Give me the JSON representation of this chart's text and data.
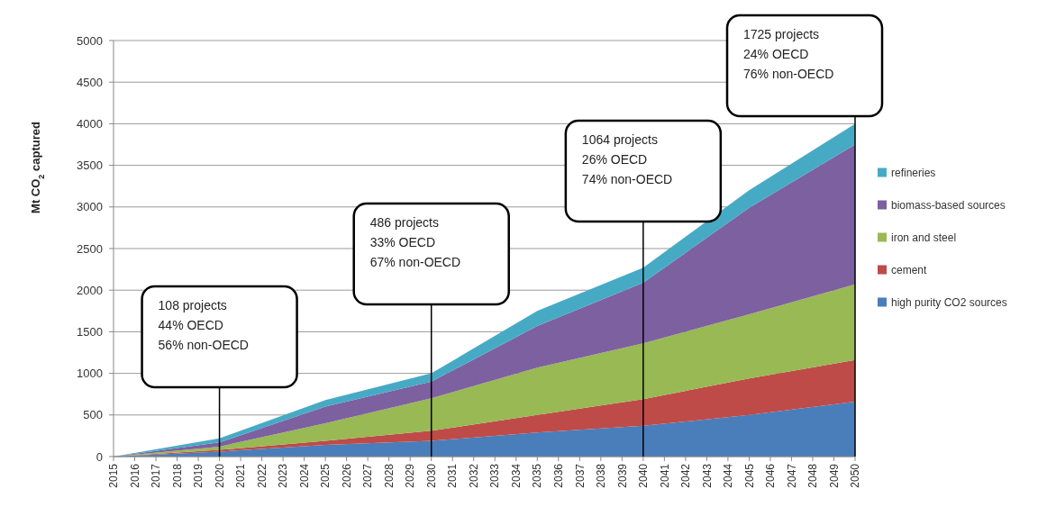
{
  "chart_data": {
    "type": "area",
    "stacked": true,
    "ylabel": "Mt CO$_{2}$ captured",
    "x": [
      2015,
      2020,
      2025,
      2030,
      2035,
      2040,
      2045,
      2050
    ],
    "xlim": [
      2015,
      2050
    ],
    "xticks": [
      2015,
      2016,
      2017,
      2018,
      2019,
      2020,
      2021,
      2022,
      2023,
      2024,
      2025,
      2026,
      2027,
      2028,
      2029,
      2030,
      2031,
      2032,
      2033,
      2034,
      2035,
      2036,
      2037,
      2038,
      2039,
      2040,
      2041,
      2042,
      2043,
      2044,
      2045,
      2046,
      2047,
      2048,
      2049,
      2050
    ],
    "ylim": [
      0,
      5000
    ],
    "yticks": [
      0,
      500,
      1000,
      1500,
      2000,
      2500,
      3000,
      3500,
      4000,
      4500,
      5000
    ],
    "grid": "y",
    "legend": "right",
    "series": [
      {
        "name": "high purity CO2 sources",
        "color": "#4a7ebb",
        "values": [
          0,
          60,
          140,
          190,
          290,
          370,
          500,
          660
        ]
      },
      {
        "name": "cement",
        "color": "#be4b48",
        "values": [
          0,
          20,
          50,
          120,
          210,
          320,
          440,
          500
        ]
      },
      {
        "name": "iron and steel",
        "color": "#98b954",
        "values": [
          0,
          40,
          210,
          390,
          570,
          670,
          770,
          910
        ]
      },
      {
        "name": "biomass-based sources",
        "color": "#7d60a0",
        "values": [
          0,
          50,
          200,
          200,
          500,
          730,
          1280,
          1680
        ]
      },
      {
        "name": "refineries",
        "color": "#46aac5",
        "values": [
          0,
          50,
          80,
          100,
          180,
          180,
          210,
          250
        ]
      }
    ],
    "ref_lines": [
      {
        "axis": "x",
        "value": 2020,
        "label": "108 projects\n44% OECD\n56% non-OECD"
      },
      {
        "axis": "x",
        "value": 2030,
        "label": "486 projects\n33% OECD\n67% non-OECD"
      },
      {
        "axis": "x",
        "value": 2040,
        "label": "1064 projects\n26% OECD\n74% non-OECD"
      },
      {
        "axis": "x",
        "value": 2050,
        "label": "1725 projects\n24% OECD\n76% non-OECD"
      }
    ]
  }
}
